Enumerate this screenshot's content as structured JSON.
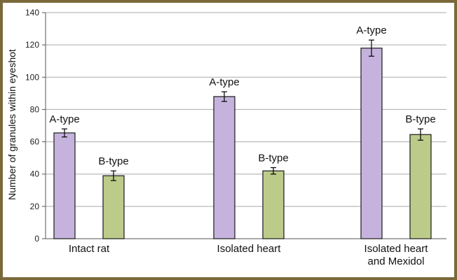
{
  "chart_data": {
    "type": "bar",
    "title": "",
    "xlabel": "",
    "ylabel": "Number of granules within eyeshot",
    "ylim": [
      0,
      140
    ],
    "yticks": [
      0,
      20,
      40,
      60,
      80,
      100,
      120,
      140
    ],
    "grid": true,
    "categories": [
      [
        "Intact rat"
      ],
      [
        "Isolated heart"
      ],
      [
        "Isolated heart",
        "and Mexidol"
      ]
    ],
    "series": [
      {
        "label": "A-type",
        "color": "#c5b3dd",
        "values": [
          65.5,
          88,
          118
        ],
        "errors": [
          2.5,
          3,
          5
        ]
      },
      {
        "label": "B-type",
        "color": "#bccb8a",
        "values": [
          39,
          42,
          64.5
        ],
        "errors": [
          3,
          2,
          3.5
        ]
      }
    ]
  },
  "colors": {
    "frame": "#7a6a3a",
    "gridline": "#a9a9a9",
    "bar_stroke": "#1a1a1a"
  }
}
